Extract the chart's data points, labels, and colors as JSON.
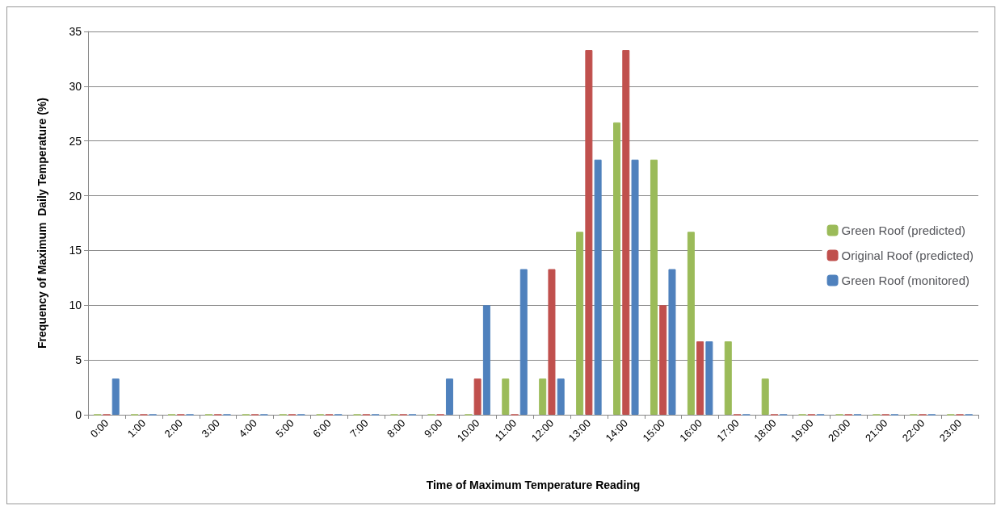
{
  "chart_data": {
    "type": "bar",
    "xlabel": "Time of Maximum Temperature Reading",
    "ylabel": "Frequency of Maximum  Daily Temperature (%)",
    "categories": [
      "0:00",
      "1:00",
      "2:00",
      "3:00",
      "4:00",
      "5:00",
      "6:00",
      "7:00",
      "8:00",
      "9:00",
      "10:00",
      "11:00",
      "12:00",
      "13:00",
      "14:00",
      "15:00",
      "16:00",
      "17:00",
      "18:00",
      "19:00",
      "20:00",
      "21:00",
      "22:00",
      "23:00"
    ],
    "series": [
      {
        "name": "Green Roof (predicted)",
        "color": "#9bbb59",
        "values": [
          0,
          0,
          0,
          0,
          0,
          0,
          0,
          0,
          0,
          0,
          0,
          3.3,
          3.3,
          16.7,
          26.7,
          23.3,
          16.7,
          6.7,
          3.3,
          0,
          0,
          0,
          0,
          0
        ]
      },
      {
        "name": "Original Roof (predicted)",
        "color": "#c0504d",
        "values": [
          0,
          0,
          0,
          0,
          0,
          0,
          0,
          0,
          0,
          0,
          3.3,
          0,
          13.3,
          33.3,
          33.3,
          10,
          6.7,
          0,
          0,
          0,
          0,
          0,
          0,
          0
        ]
      },
      {
        "name": "Green Roof (monitored)",
        "color": "#4f81bd",
        "values": [
          3.3,
          0,
          0,
          0,
          0,
          0,
          0,
          0,
          0,
          3.3,
          10,
          13.3,
          3.3,
          23.3,
          23.3,
          13.3,
          6.7,
          0,
          0,
          0,
          0,
          0,
          0,
          0
        ]
      }
    ],
    "ylim": [
      0,
      35
    ],
    "yticks": [
      0,
      5,
      10,
      15,
      20,
      25,
      30,
      35
    ],
    "grid": "y",
    "legend": "right"
  }
}
